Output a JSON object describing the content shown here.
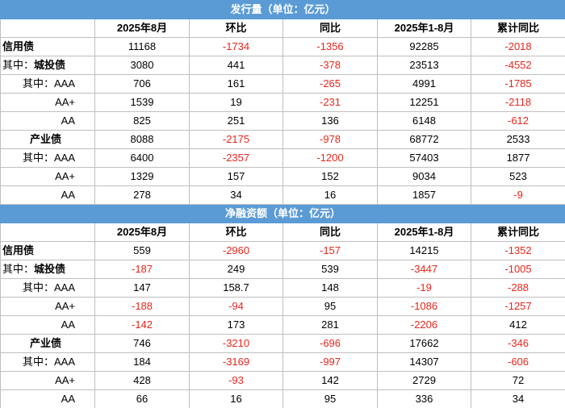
{
  "colors": {
    "title_bg": "#5b9bd5",
    "negative": "#e8261c",
    "border": "#bfbfbf"
  },
  "headers": [
    "",
    "2025年8月",
    "环比",
    "同比",
    "2025年1-8月",
    "累计同比"
  ],
  "sections": [
    {
      "title": "发行量（单位：亿元）",
      "rows": [
        {
          "label": "信用债",
          "style": "bold",
          "values": [
            "11168",
            "-1734",
            "-1356",
            "92285",
            "-2018"
          ]
        },
        {
          "label_prefix": "其中：",
          "label": "城投债",
          "style": "sub",
          "values": [
            "3080",
            "441",
            "-378",
            "23513",
            "-4552"
          ]
        },
        {
          "label": "其中：AAA",
          "style": "ind",
          "values": [
            "706",
            "161",
            "-265",
            "4991",
            "-1785"
          ]
        },
        {
          "label": "AA+",
          "style": "ind",
          "values": [
            "1539",
            "19",
            "-231",
            "12251",
            "-2118"
          ]
        },
        {
          "label": "AA",
          "style": "ind",
          "values": [
            "825",
            "251",
            "136",
            "6148",
            "-612"
          ]
        },
        {
          "label": "产业债",
          "style": "bold-indent",
          "values": [
            "8088",
            "-2175",
            "-978",
            "68772",
            "2533"
          ]
        },
        {
          "label": "其中：AAA",
          "style": "ind",
          "values": [
            "6400",
            "-2357",
            "-1200",
            "57403",
            "1877"
          ]
        },
        {
          "label": "AA+",
          "style": "ind",
          "values": [
            "1329",
            "157",
            "152",
            "9034",
            "523"
          ]
        },
        {
          "label": "AA",
          "style": "ind",
          "values": [
            "278",
            "34",
            "16",
            "1857",
            "-9"
          ]
        }
      ]
    },
    {
      "title": "净融资额（单位：亿元）",
      "rows": [
        {
          "label": "信用债",
          "style": "bold",
          "values": [
            "559",
            "-2960",
            "-157",
            "14215",
            "-1352"
          ]
        },
        {
          "label_prefix": "其中：",
          "label": "城投债",
          "style": "sub",
          "values": [
            "-187",
            "249",
            "539",
            "-3447",
            "-1005"
          ]
        },
        {
          "label": "其中：AAA",
          "style": "ind",
          "values": [
            "147",
            "158.7",
            "148",
            "-19",
            "-288"
          ]
        },
        {
          "label": "AA+",
          "style": "ind",
          "values": [
            "-188",
            "-94",
            "95",
            "-1086",
            "-1257"
          ]
        },
        {
          "label": "AA",
          "style": "ind",
          "values": [
            "-142",
            "173",
            "281",
            "-2206",
            "412"
          ]
        },
        {
          "label": "产业债",
          "style": "bold-indent",
          "values": [
            "746",
            "-3210",
            "-696",
            "17662",
            "-346"
          ]
        },
        {
          "label": "其中：AAA",
          "style": "ind",
          "values": [
            "184",
            "-3169",
            "-997",
            "14307",
            "-606"
          ]
        },
        {
          "label": "AA+",
          "style": "ind",
          "values": [
            "428",
            "-93",
            "142",
            "2729",
            "72"
          ]
        },
        {
          "label": "AA",
          "style": "ind",
          "values": [
            "66",
            "16",
            "95",
            "336",
            "34"
          ]
        }
      ]
    }
  ]
}
